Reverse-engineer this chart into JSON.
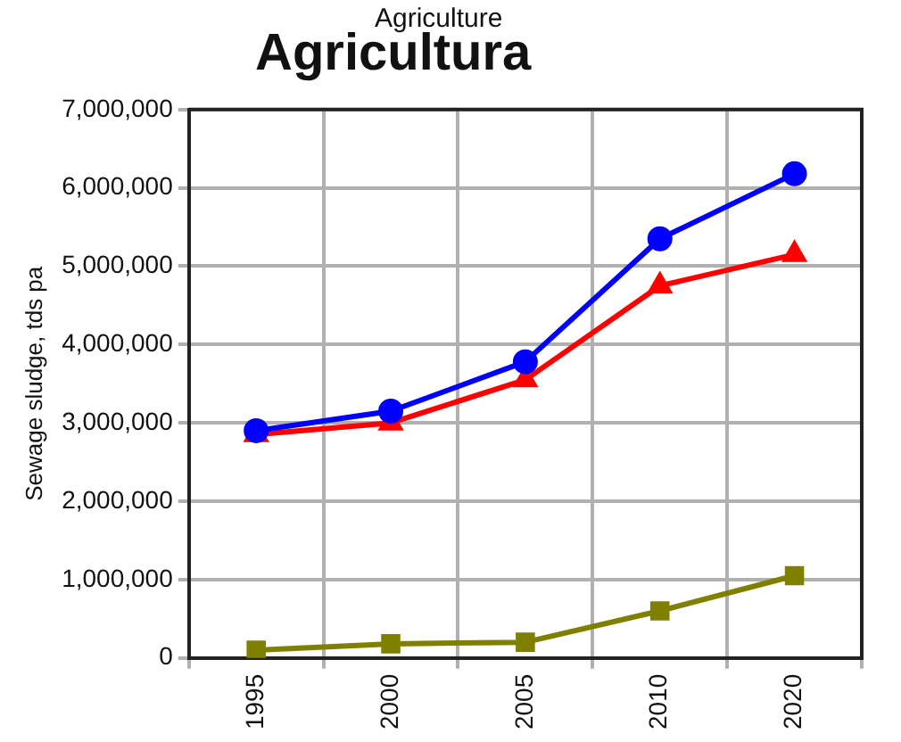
{
  "chart_data": {
    "type": "line",
    "title": "Agricultura",
    "subtitle": "Agriculture",
    "ylabel": "Sewage sludge, tds pa",
    "categories": [
      "1995",
      "2000",
      "2005",
      "2010",
      "2020"
    ],
    "series": [
      {
        "color": "#0000ff",
        "marker": "circle",
        "values": [
          2900000,
          3150000,
          3780000,
          5350000,
          6180000
        ]
      },
      {
        "color": "#ff0000",
        "marker": "triangle",
        "values": [
          2850000,
          3000000,
          3550000,
          4750000,
          5150000
        ]
      },
      {
        "color": "#808000",
        "marker": "square",
        "values": [
          100000,
          180000,
          200000,
          600000,
          1050000
        ]
      }
    ],
    "ylim": [
      0,
      7000000
    ],
    "yticks": [
      0,
      {
        "value": 1000000,
        "label": "1,000,000"
      },
      {
        "value": 2000000,
        "label": "2,000,000"
      },
      {
        "value": 3000000,
        "label": "3,000,000"
      },
      {
        "value": 4000000,
        "label": "4,000,000"
      },
      {
        "value": 5000000,
        "label": "5,000,000"
      },
      {
        "value": 6000000,
        "label": "6,000,000"
      },
      {
        "value": 7000000,
        "label": "7,000,000"
      }
    ],
    "grid": true,
    "legend": false,
    "line_style": "solid"
  }
}
